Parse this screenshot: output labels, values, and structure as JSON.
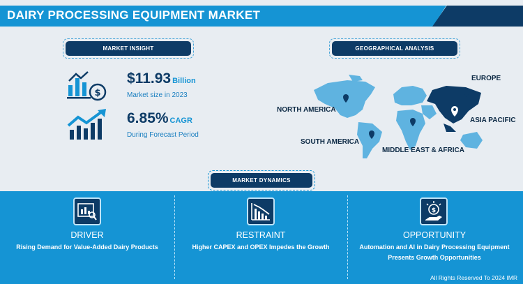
{
  "header": {
    "title": "DAIRY PROCESSING EQUIPMENT MARKET"
  },
  "market_insight": {
    "label": "MARKET INSIGHT",
    "size_value": "$11.93",
    "size_unit": "Billion",
    "size_caption": "Market size in 2023",
    "cagr_value": "6.85%",
    "cagr_unit": "CAGR",
    "cagr_caption": "During Forecast Period"
  },
  "geographical_analysis": {
    "label": "GEOGRAPHICAL ANALYSIS",
    "regions": {
      "europe": "EUROPE",
      "north_america": "NORTH AMERICA",
      "asia_pacific": "ASIA PACIFIC",
      "south_america": "SOUTH AMERICA",
      "middle_east_africa": "MIDDLE EAST & AFRICA"
    }
  },
  "market_dynamics": {
    "label": "MARKET DYNAMICS",
    "driver": {
      "title": "DRIVER",
      "desc": "Rising Demand for Value-Added Dairy Products"
    },
    "restraint": {
      "title": "RESTRAINT",
      "desc": "Higher CAPEX and OPEX Impedes the Growth"
    },
    "opportunity": {
      "title": "OPPORTUNITY",
      "desc": "Automation and AI in Dairy Processing Equipment Presents Growth Opportunities"
    }
  },
  "footer": {
    "text": "All Rights Reserved To 2024 IMR"
  },
  "colors": {
    "navy": "#0d3b66",
    "blue": "#1594d4",
    "map_light": "#5fb3e0",
    "background": "#e8edf2"
  }
}
